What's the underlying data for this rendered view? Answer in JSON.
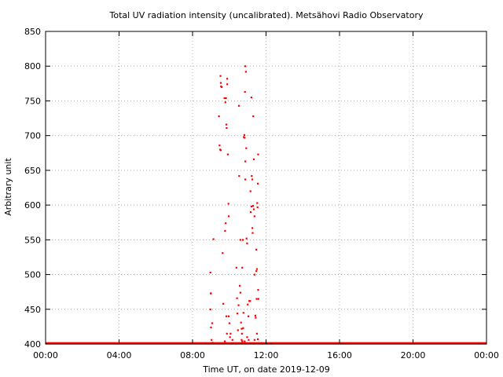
{
  "chart_data": {
    "type": "scatter",
    "title": "Total UV radiation intensity (uncalibrated). Metsähovi Radio Observatory",
    "xlabel": "Time UT, on date 2019-12-09",
    "ylabel": "Arbitrary unit",
    "xlim": [
      "00:00",
      "24:00"
    ],
    "ylim": [
      400,
      850
    ],
    "x_ticks": [
      "00:00",
      "04:00",
      "08:00",
      "12:00",
      "16:00",
      "20:00",
      "00:00"
    ],
    "y_ticks": [
      "400",
      "450",
      "500",
      "550",
      "600",
      "650",
      "700",
      "750",
      "800",
      "850"
    ],
    "grid": true,
    "series": [
      {
        "color": "#ff0000",
        "baseline": {
          "value": 401,
          "from": "00:00",
          "to": "24:00"
        },
        "points": [
          {
            "x": "08:58",
            "y": 503
          },
          {
            "x": "08:59",
            "y": 473
          },
          {
            "x": "09:00",
            "y": 473
          },
          {
            "x": "08:58",
            "y": 450
          },
          {
            "x": "09:00",
            "y": 424
          },
          {
            "x": "09:04",
            "y": 430
          },
          {
            "x": "09:08",
            "y": 551
          },
          {
            "x": "09:02",
            "y": 406
          },
          {
            "x": "09:05",
            "y": 402
          },
          {
            "x": "09:26",
            "y": 728
          },
          {
            "x": "09:28",
            "y": 686
          },
          {
            "x": "09:30",
            "y": 680
          },
          {
            "x": "09:32",
            "y": 679
          },
          {
            "x": "09:31",
            "y": 786
          },
          {
            "x": "09:32",
            "y": 776
          },
          {
            "x": "09:33",
            "y": 771
          },
          {
            "x": "09:35",
            "y": 770
          },
          {
            "x": "09:38",
            "y": 531
          },
          {
            "x": "09:40",
            "y": 458
          },
          {
            "x": "09:44",
            "y": 754
          },
          {
            "x": "09:47",
            "y": 748
          },
          {
            "x": "09:49",
            "y": 754
          },
          {
            "x": "09:50",
            "y": 716
          },
          {
            "x": "09:51",
            "y": 711
          },
          {
            "x": "09:53",
            "y": 782
          },
          {
            "x": "09:53",
            "y": 774
          },
          {
            "x": "09:46",
            "y": 563
          },
          {
            "x": "09:48",
            "y": 574
          },
          {
            "x": "09:50",
            "y": 440
          },
          {
            "x": "09:55",
            "y": 673
          },
          {
            "x": "09:57",
            "y": 602
          },
          {
            "x": "09:58",
            "y": 584
          },
          {
            "x": "09:58",
            "y": 440
          },
          {
            "x": "09:52",
            "y": 415
          },
          {
            "x": "10:00",
            "y": 430
          },
          {
            "x": "10:02",
            "y": 410
          },
          {
            "x": "10:04",
            "y": 415
          },
          {
            "x": "09:45",
            "y": 404
          },
          {
            "x": "10:23",
            "y": 510
          },
          {
            "x": "10:25",
            "y": 466
          },
          {
            "x": "10:26",
            "y": 444
          },
          {
            "x": "10:28",
            "y": 420
          },
          {
            "x": "10:30",
            "y": 456
          },
          {
            "x": "10:31",
            "y": 743
          },
          {
            "x": "10:32",
            "y": 642
          },
          {
            "x": "10:34",
            "y": 484
          },
          {
            "x": "10:36",
            "y": 474
          },
          {
            "x": "10:38",
            "y": 431
          },
          {
            "x": "10:40",
            "y": 422
          },
          {
            "x": "10:41",
            "y": 415
          },
          {
            "x": "10:42",
            "y": 404
          },
          {
            "x": "10:36",
            "y": 550
          },
          {
            "x": "10:42",
            "y": 510
          },
          {
            "x": "10:44",
            "y": 550
          },
          {
            "x": "10:45",
            "y": 423
          },
          {
            "x": "10:46",
            "y": 445
          },
          {
            "x": "10:47",
            "y": 698
          },
          {
            "x": "10:49",
            "y": 701
          },
          {
            "x": "10:50",
            "y": 697
          },
          {
            "x": "10:52",
            "y": 663
          },
          {
            "x": "10:52",
            "y": 637
          },
          {
            "x": "10:51",
            "y": 763
          },
          {
            "x": "10:52",
            "y": 800
          },
          {
            "x": "10:54",
            "y": 792
          },
          {
            "x": "10:55",
            "y": 682
          },
          {
            "x": "10:56",
            "y": 552
          },
          {
            "x": "10:58",
            "y": 545
          },
          {
            "x": "10:58",
            "y": 410
          },
          {
            "x": "11:00",
            "y": 457
          },
          {
            "x": "11:02",
            "y": 440
          },
          {
            "x": "11:03",
            "y": 406
          },
          {
            "x": "11:05",
            "y": 462
          },
          {
            "x": "11:08",
            "y": 462
          },
          {
            "x": "11:09",
            "y": 620
          },
          {
            "x": "11:10",
            "y": 590
          },
          {
            "x": "11:12",
            "y": 598
          },
          {
            "x": "11:12",
            "y": 755
          },
          {
            "x": "11:13",
            "y": 642
          },
          {
            "x": "11:15",
            "y": 637
          },
          {
            "x": "11:15",
            "y": 567
          },
          {
            "x": "11:16",
            "y": 560
          },
          {
            "x": "11:17",
            "y": 599
          },
          {
            "x": "11:18",
            "y": 728
          },
          {
            "x": "11:20",
            "y": 666
          },
          {
            "x": "11:20",
            "y": 594
          },
          {
            "x": "11:22",
            "y": 584
          },
          {
            "x": "11:22",
            "y": 500
          },
          {
            "x": "11:25",
            "y": 441
          },
          {
            "x": "11:26",
            "y": 438
          },
          {
            "x": "11:28",
            "y": 505
          },
          {
            "x": "11:28",
            "y": 536
          },
          {
            "x": "11:29",
            "y": 465
          },
          {
            "x": "11:30",
            "y": 508
          },
          {
            "x": "11:31",
            "y": 603
          },
          {
            "x": "11:32",
            "y": 597
          },
          {
            "x": "11:33",
            "y": 631
          },
          {
            "x": "11:34",
            "y": 673
          },
          {
            "x": "11:34",
            "y": 478
          },
          {
            "x": "11:35",
            "y": 465
          },
          {
            "x": "11:33",
            "y": 407
          },
          {
            "x": "11:30",
            "y": 415
          },
          {
            "x": "11:22",
            "y": 406
          },
          {
            "x": "10:40",
            "y": 406
          },
          {
            "x": "10:10",
            "y": 406
          },
          {
            "x": "10:50",
            "y": 404
          }
        ]
      }
    ]
  }
}
